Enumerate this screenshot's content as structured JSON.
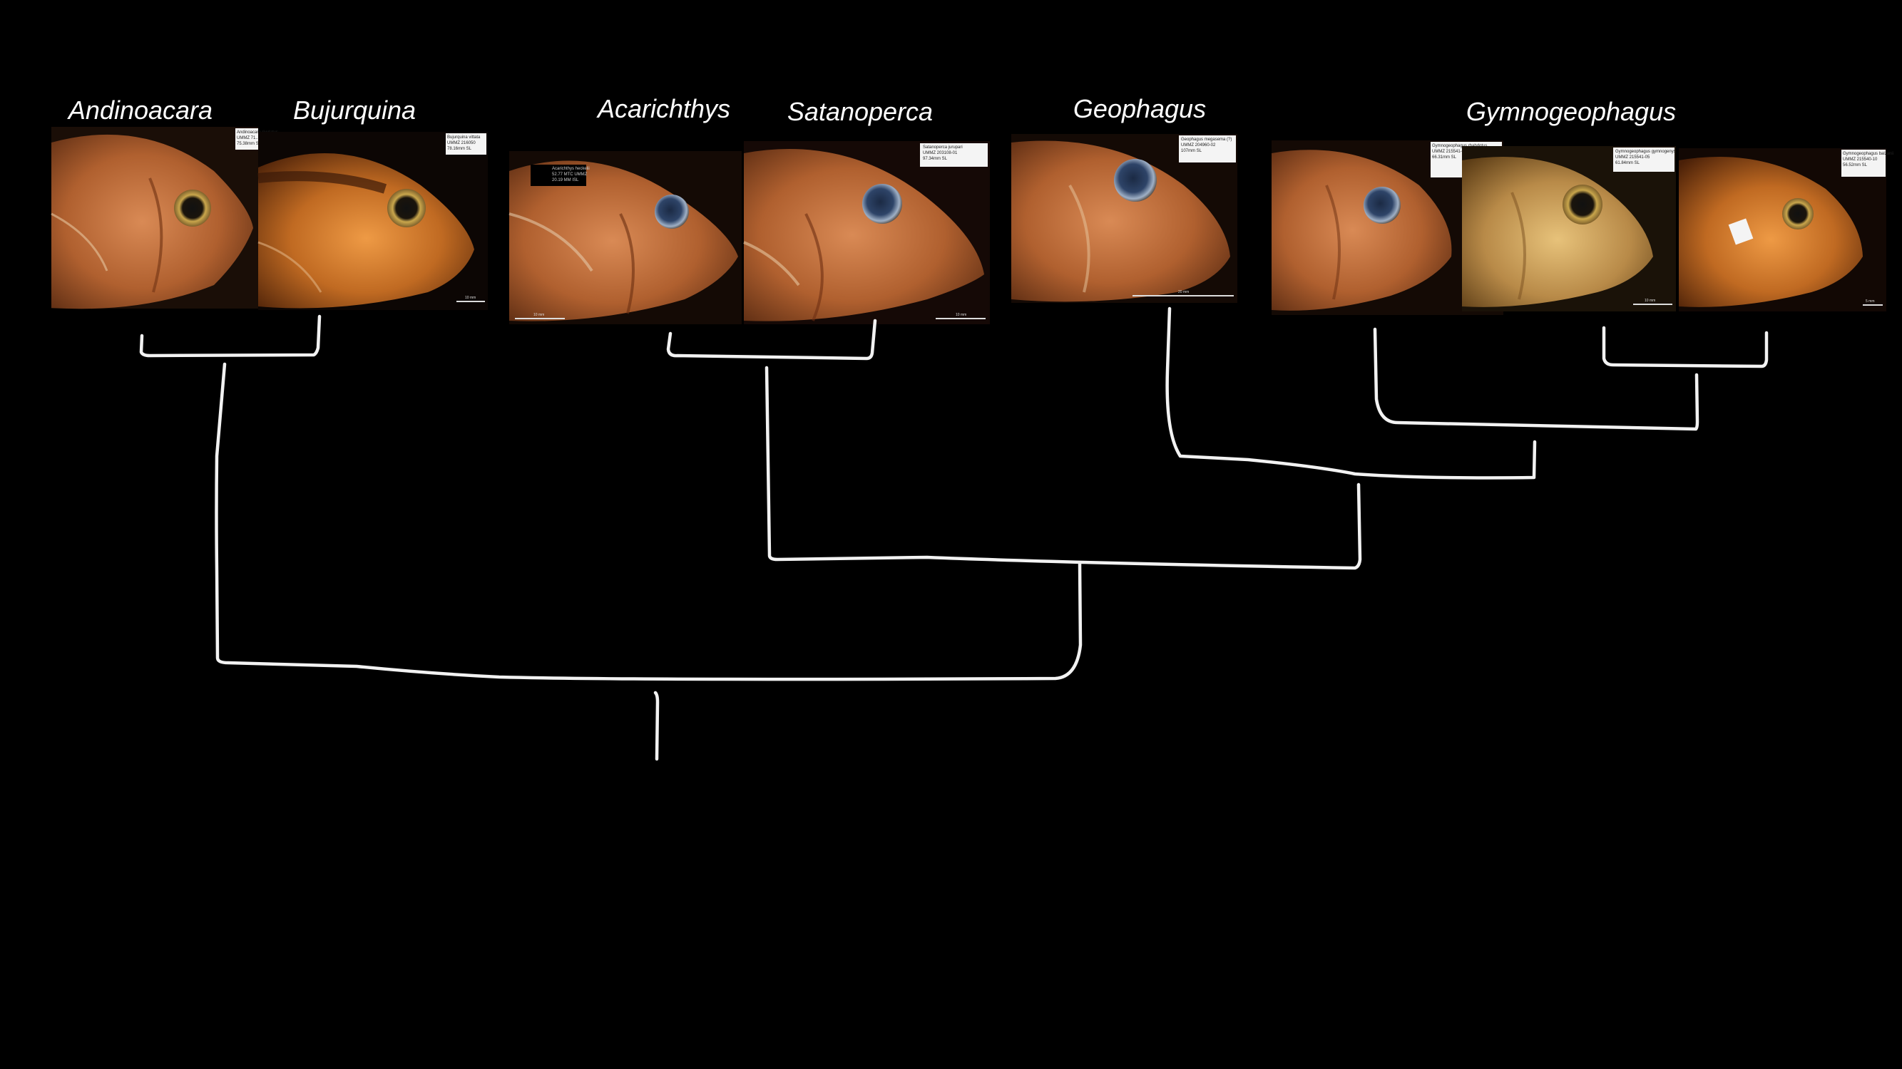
{
  "colors": {
    "background": "#000000",
    "branch": "#f2f2f2",
    "label": "#ffffff"
  },
  "tree": {
    "genera": [
      {
        "id": "andinoacara",
        "name": "Andinoacara"
      },
      {
        "id": "bujurquina",
        "name": "Bujurquina"
      },
      {
        "id": "acarichthys",
        "name": "Acarichthys"
      },
      {
        "id": "satanoperca",
        "name": "Satanoperca"
      },
      {
        "id": "geophagus",
        "name": "Geophagus"
      },
      {
        "id": "gymnogeophagus",
        "name": "Gymnogeophagus"
      }
    ],
    "photos": [
      {
        "id": "andinoacara",
        "caption": [
          "Andinoacara rivulatus",
          "UMMZ 71...",
          "75.38mm SL"
        ],
        "scale_label": ""
      },
      {
        "id": "bujurquina",
        "caption": [
          "Bujurquina vittata",
          "UMMZ 216050",
          "78.16mm SL"
        ],
        "scale_label": "10 mm"
      },
      {
        "id": "acarichthys",
        "caption": [
          "Acarichthys heckelii",
          "52.77 MTC UMMZ",
          "20.19 MM ISL"
        ],
        "scale_label": "10 mm"
      },
      {
        "id": "satanoperca",
        "caption": [
          "Satanoperca jurupari",
          "UMMZ 203108-01",
          "97.34mm SL"
        ],
        "scale_label": "10 mm"
      },
      {
        "id": "geophagus",
        "caption": [
          "Geophagus megasema (?)",
          "UMMZ 204960-02",
          "107mm SL"
        ],
        "scale_label": "20 mm"
      },
      {
        "id": "gymnogeophagus_1",
        "caption": [
          "Gymnogeophagus rhabdotus",
          "UMMZ 215541-04",
          "66.31mm SL"
        ],
        "scale_label": ""
      },
      {
        "id": "gymnogeophagus_2",
        "caption": [
          "Gymnogeophagus gymnogenys",
          "UMMZ 215541-05",
          "61.84mm SL"
        ],
        "scale_label": "10 mm"
      },
      {
        "id": "gymnogeophagus_3",
        "caption": [
          "Gymnogeophagus balzanii",
          "UMMZ 215540-10",
          "56.52mm SL"
        ],
        "scale_label": "5 mm"
      }
    ]
  }
}
